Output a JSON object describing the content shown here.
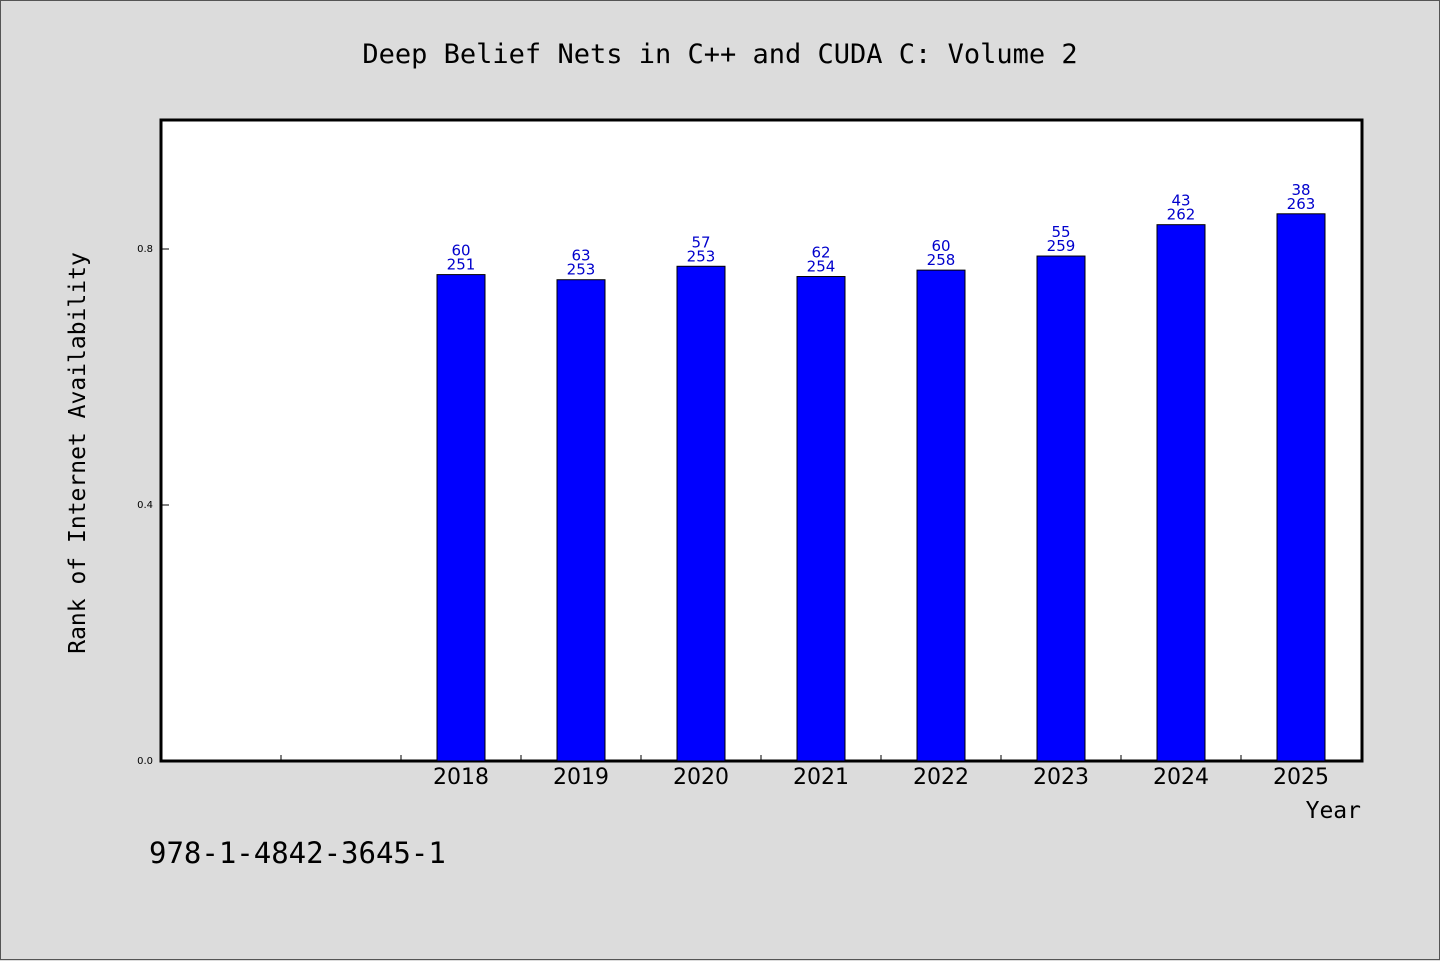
{
  "chart_data": {
    "type": "bar",
    "title": "Deep Belief Nets in C++ and CUDA C: Volume 2",
    "xlabel": "Year",
    "ylabel": "Rank of Internet Availability",
    "categories": [
      "2018",
      "2019",
      "2020",
      "2021",
      "2022",
      "2023",
      "2024",
      "2025"
    ],
    "values": [
      0.76,
      0.752,
      0.773,
      0.757,
      0.767,
      0.789,
      0.838,
      0.855
    ],
    "label_top": [
      "60",
      "63",
      "57",
      "62",
      "60",
      "55",
      "43",
      "38"
    ],
    "label_bottom": [
      "251",
      "253",
      "253",
      "254",
      "258",
      "259",
      "262",
      "263"
    ],
    "yticks": [
      0.0,
      0.4,
      0.8
    ],
    "ytick_labels": [
      "0.0",
      "0.4",
      "0.8"
    ],
    "ylim": [
      0,
      1.0
    ],
    "empty_slots_before": 2,
    "bar_color": "#0000ff",
    "label_color": "#0000cc",
    "grid": false,
    "legend": "none"
  },
  "footer": {
    "isbn": "978-1-4842-3645-1"
  }
}
